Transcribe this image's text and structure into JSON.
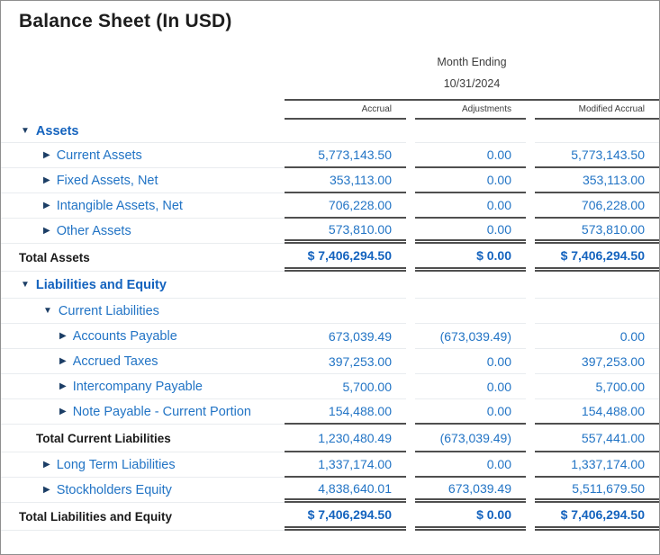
{
  "title": "Balance Sheet (In USD)",
  "period": {
    "label": "Month Ending",
    "date": "10/31/2024"
  },
  "columns": [
    "Accrual",
    "Adjustments",
    "Modified Accrual"
  ],
  "icons": {
    "down": "▼",
    "right": "▶"
  },
  "colors": {
    "section_blue": "#1463BE",
    "item_blue": "#2274C5",
    "arrow_navy": "#1C3E66",
    "total_text": "#1A1A1A",
    "dark_rule": "#4F4F4F",
    "light_rule": "#E9ECEF"
  },
  "rows": [
    {
      "label": "Assets",
      "style": "section",
      "level": 1,
      "arrow": "down",
      "rule": "light",
      "values": [
        "",
        "",
        ""
      ]
    },
    {
      "label": "Current Assets",
      "style": "item",
      "level": 2,
      "arrow": "right",
      "rule": "dark",
      "values": [
        "5,773,143.50",
        "0.00",
        "5,773,143.50"
      ]
    },
    {
      "label": "Fixed Assets, Net",
      "style": "item",
      "level": 2,
      "arrow": "right",
      "rule": "dark",
      "values": [
        "353,113.00",
        "0.00",
        "353,113.00"
      ]
    },
    {
      "label": "Intangible Assets, Net",
      "style": "item",
      "level": 2,
      "arrow": "right",
      "rule": "dark",
      "values": [
        "706,228.00",
        "0.00",
        "706,228.00"
      ]
    },
    {
      "label": "Other Assets",
      "style": "item",
      "level": 2,
      "arrow": "right",
      "rule": "double",
      "values": [
        "573,810.00",
        "0.00",
        "573,810.00"
      ]
    },
    {
      "label": "Total Assets",
      "style": "total",
      "level": 1,
      "arrow": null,
      "rule": "double",
      "values": [
        "$ 7,406,294.50",
        "$ 0.00",
        "$ 7,406,294.50"
      ]
    },
    {
      "label": "Liabilities and Equity",
      "style": "section",
      "level": 1,
      "arrow": "down",
      "rule": "light",
      "values": [
        "",
        "",
        ""
      ]
    },
    {
      "label": "Current Liabilities",
      "style": "group",
      "level": 2,
      "arrow": "down",
      "rule": "light",
      "values": [
        "",
        "",
        ""
      ]
    },
    {
      "label": "Accounts Payable",
      "style": "item",
      "level": 3,
      "arrow": "right",
      "rule": "light",
      "values": [
        "673,039.49",
        "(673,039.49)",
        "0.00"
      ]
    },
    {
      "label": "Accrued Taxes",
      "style": "item",
      "level": 3,
      "arrow": "right",
      "rule": "light",
      "values": [
        "397,253.00",
        "0.00",
        "397,253.00"
      ]
    },
    {
      "label": "Intercompany Payable",
      "style": "item",
      "level": 3,
      "arrow": "right",
      "rule": "light",
      "values": [
        "5,700.00",
        "0.00",
        "5,700.00"
      ]
    },
    {
      "label": "Note Payable - Current Portion",
      "style": "item",
      "level": 3,
      "arrow": "right",
      "rule": "dark",
      "values": [
        "154,488.00",
        "0.00",
        "154,488.00"
      ]
    },
    {
      "label": "Total Current Liabilities",
      "style": "total",
      "level": 2,
      "arrow": null,
      "rule": "dark",
      "values": [
        "1,230,480.49",
        "(673,039.49)",
        "557,441.00"
      ],
      "plain_values": true
    },
    {
      "label": "Long Term Liabilities",
      "style": "item",
      "level": 2,
      "arrow": "right",
      "rule": "dark",
      "values": [
        "1,337,174.00",
        "0.00",
        "1,337,174.00"
      ]
    },
    {
      "label": "Stockholders Equity",
      "style": "item",
      "level": 2,
      "arrow": "right",
      "rule": "double",
      "values": [
        "4,838,640.01",
        "673,039.49",
        "5,511,679.50"
      ]
    },
    {
      "label": "Total Liabilities and Equity",
      "style": "total",
      "level": 1,
      "arrow": null,
      "rule": "double",
      "values": [
        "$ 7,406,294.50",
        "$ 0.00",
        "$ 7,406,294.50"
      ]
    }
  ]
}
